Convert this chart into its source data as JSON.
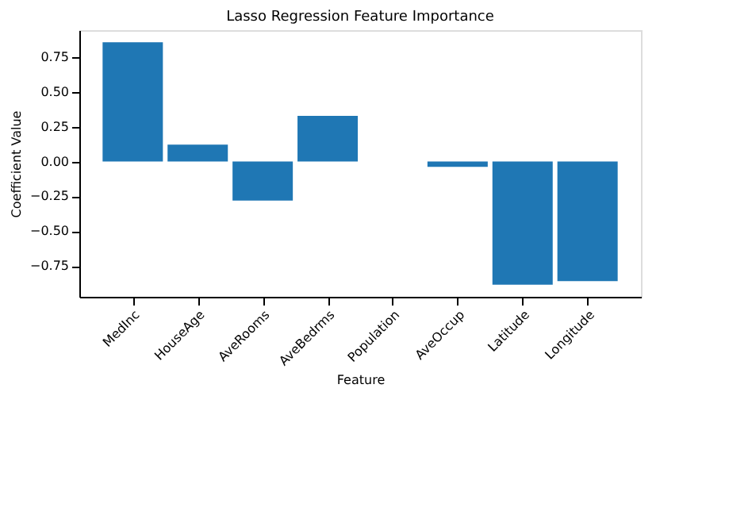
{
  "chart_data": {
    "type": "bar",
    "title": "Lasso Regression Feature Importance",
    "xlabel": "Feature",
    "ylabel": "Coefficient Value",
    "categories": [
      "MedInc",
      "HouseAge",
      "AveRooms",
      "AveBedrms",
      "Population",
      "AveOccup",
      "Latitude",
      "Longitude"
    ],
    "values": [
      0.856,
      0.121,
      -0.28,
      0.328,
      0.0,
      -0.038,
      -0.884,
      -0.859
    ],
    "color": "#1f77b4",
    "ylim": [
      -0.971,
      0.943
    ],
    "yticks": [
      {
        "value": -0.75,
        "label": "−0.75"
      },
      {
        "value": -0.5,
        "label": "−0.50"
      },
      {
        "value": -0.25,
        "label": "−0.25"
      },
      {
        "value": 0,
        "label": "0.00"
      },
      {
        "value": 0.25,
        "label": "0.25"
      },
      {
        "value": 0.5,
        "label": "0.50"
      },
      {
        "value": 0.75,
        "label": "0.75"
      }
    ],
    "grid": false
  }
}
